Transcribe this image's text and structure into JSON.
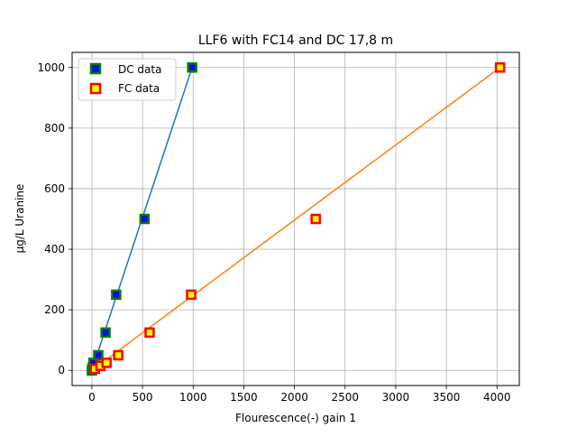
{
  "chart_data": {
    "type": "scatter",
    "title": "LLF6 with FC14 and DC 17,8 m",
    "xlabel": "Flourescence(-) gain 1",
    "ylabel": "µg/L Uranine",
    "xlim": [
      -195,
      4220
    ],
    "ylim": [
      -50,
      1050
    ],
    "xticks": [
      0,
      500,
      1000,
      1500,
      2000,
      2500,
      3000,
      3500,
      4000
    ],
    "yticks": [
      0,
      200,
      400,
      600,
      800,
      1000
    ],
    "grid": true,
    "legend": "top-left",
    "series": [
      {
        "name": "DC data",
        "marker_face": "#0000ff",
        "marker_edge": "#008000",
        "line_color": "#1f77b4",
        "points": [
          [
            0,
            0
          ],
          [
            5,
            5
          ],
          [
            10,
            10
          ],
          [
            15,
            25
          ],
          [
            63,
            50
          ],
          [
            135,
            125
          ],
          [
            240,
            250
          ],
          [
            520,
            500
          ],
          [
            990,
            1000
          ]
        ],
        "fit": [
          [
            0,
            0
          ],
          [
            990,
            1000
          ]
        ]
      },
      {
        "name": "FC data",
        "marker_face": "#ffff00",
        "marker_edge": "#ff0000",
        "line_color": "#ff7f0e",
        "points": [
          [
            30,
            5
          ],
          [
            85,
            15
          ],
          [
            145,
            25
          ],
          [
            260,
            50
          ],
          [
            570,
            125
          ],
          [
            980,
            250
          ],
          [
            2210,
            500
          ],
          [
            4030,
            1000
          ]
        ],
        "fit": [
          [
            0,
            0
          ],
          [
            4030,
            1000
          ]
        ]
      }
    ]
  }
}
